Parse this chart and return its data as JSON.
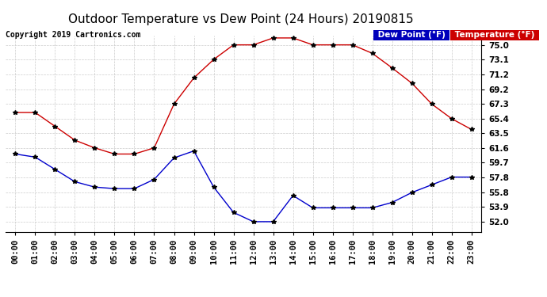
{
  "title": "Outdoor Temperature vs Dew Point (24 Hours) 20190815",
  "copyright": "Copyright 2019 Cartronics.com",
  "x_labels": [
    "00:00",
    "01:00",
    "02:00",
    "03:00",
    "04:00",
    "05:00",
    "06:00",
    "07:00",
    "08:00",
    "09:00",
    "10:00",
    "11:00",
    "12:00",
    "13:00",
    "14:00",
    "15:00",
    "16:00",
    "17:00",
    "18:00",
    "19:00",
    "20:00",
    "21:00",
    "22:00",
    "23:00"
  ],
  "yticks": [
    52.0,
    53.9,
    55.8,
    57.8,
    59.7,
    61.6,
    63.5,
    65.4,
    67.3,
    69.2,
    71.2,
    73.1,
    75.0
  ],
  "ylim": [
    50.7,
    76.2
  ],
  "temperature": [
    66.2,
    66.2,
    64.4,
    62.6,
    61.6,
    60.8,
    60.8,
    61.6,
    67.3,
    70.7,
    73.1,
    75.0,
    75.0,
    75.9,
    75.9,
    75.0,
    75.0,
    75.0,
    73.9,
    72.0,
    70.0,
    67.3,
    65.4,
    64.0
  ],
  "dewpoint": [
    60.8,
    60.4,
    58.8,
    57.2,
    56.5,
    56.3,
    56.3,
    57.5,
    60.3,
    61.2,
    56.5,
    53.2,
    52.0,
    52.0,
    55.4,
    53.8,
    53.8,
    53.8,
    53.8,
    54.5,
    55.8,
    56.8,
    57.8,
    57.8
  ],
  "temp_color": "#cc0000",
  "dew_color": "#0000cc",
  "legend_dew_bg": "#0000bb",
  "legend_temp_bg": "#cc0000",
  "legend_dew_text": "Dew Point (°F)",
  "legend_temp_text": "Temperature (°F)",
  "background_color": "#ffffff",
  "plot_bg_color": "#ffffff",
  "grid_color": "#cccccc",
  "title_fontsize": 11,
  "tick_fontsize": 7.5,
  "copyright_fontsize": 7,
  "legend_fontsize": 7.5,
  "marker": "*",
  "marker_color": "#000000",
  "marker_size": 4,
  "linewidth": 1.0
}
